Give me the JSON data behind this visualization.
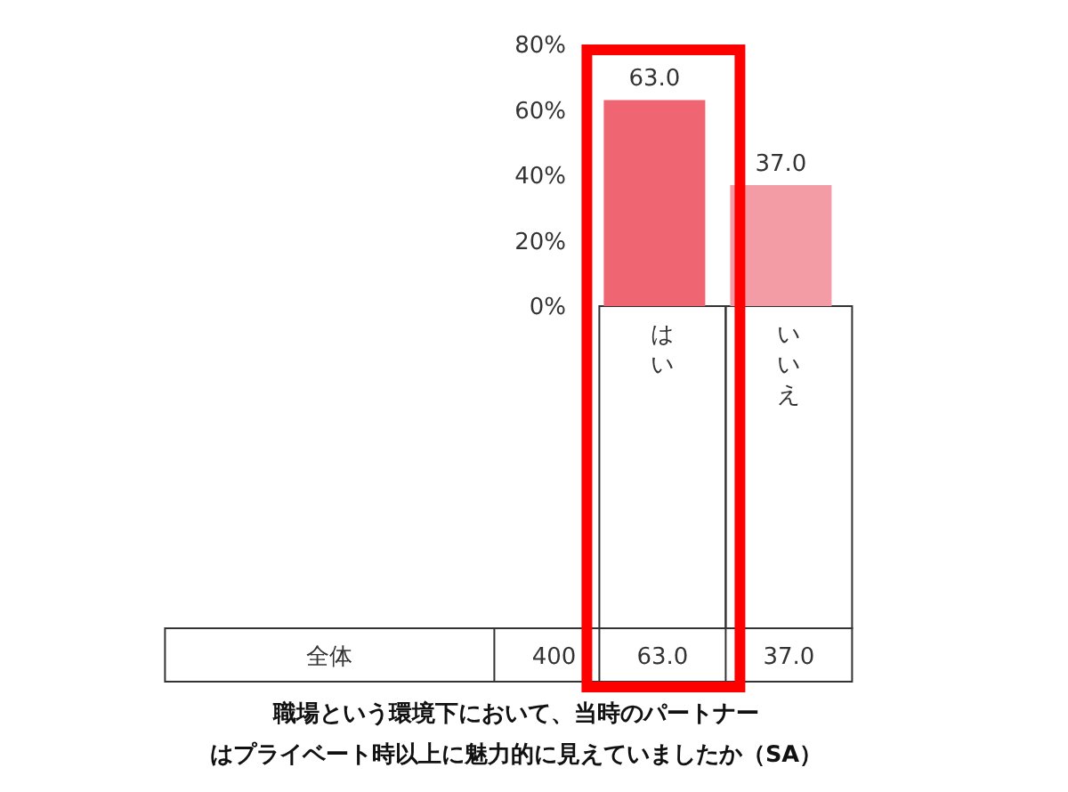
{
  "chart_data": {
    "type": "bar",
    "title": "職場という環境下において、当時のパートナーはプライベート時以上に魅力的に見えていましたか（SA）",
    "categories": [
      "はい",
      "いいえ"
    ],
    "values": [
      63.0,
      37.0
    ],
    "colors": [
      "#ef6571",
      "#f39ca6"
    ],
    "value_labels": [
      "63.0",
      "37.0"
    ],
    "ylim": [
      0,
      80
    ],
    "yticks": [
      {
        "value": 0,
        "label": "0%"
      },
      {
        "value": 20,
        "label": "20%"
      },
      {
        "value": 40,
        "label": "40%"
      },
      {
        "value": 60,
        "label": "60%"
      },
      {
        "value": 80,
        "label": "80%"
      }
    ],
    "annotations": [
      "全体",
      "400"
    ]
  }
}
